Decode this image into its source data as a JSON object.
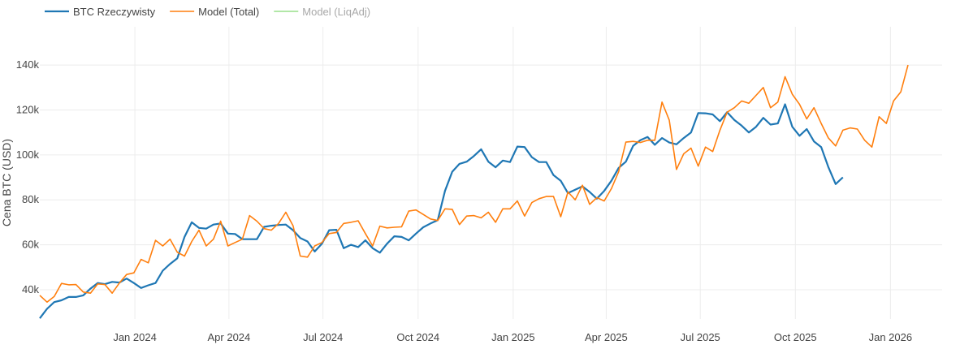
{
  "chart_data": {
    "type": "line",
    "ylabel": "Cena BTC (USD)",
    "xlim": [
      "2023-10-01",
      "2026-02-20"
    ],
    "ylim": [
      27000,
      157000
    ],
    "grid": true,
    "legend_position": "top-left",
    "x_ticks": [
      {
        "date": "2024-01-01",
        "label": "Jan 2024"
      },
      {
        "date": "2024-04-01",
        "label": "Apr 2024"
      },
      {
        "date": "2024-07-01",
        "label": "Jul 2024"
      },
      {
        "date": "2024-10-01",
        "label": "Oct 2024"
      },
      {
        "date": "2025-01-01",
        "label": "Jan 2025"
      },
      {
        "date": "2025-04-01",
        "label": "Apr 2025"
      },
      {
        "date": "2025-07-01",
        "label": "Jul 2025"
      },
      {
        "date": "2025-10-01",
        "label": "Oct 2025"
      },
      {
        "date": "2026-01-01",
        "label": "Jan 2026"
      }
    ],
    "y_ticks": [
      {
        "value": 40000,
        "label": "40k"
      },
      {
        "value": 60000,
        "label": "60k"
      },
      {
        "value": 80000,
        "label": "80k"
      },
      {
        "value": 100000,
        "label": "100k"
      },
      {
        "value": 120000,
        "label": "120k"
      },
      {
        "value": 140000,
        "label": "140k"
      }
    ],
    "series": [
      {
        "name": "BTC Rzeczywisty",
        "color": "#1f77b4",
        "legend_muted": false,
        "points": [
          [
            "2023-10-01",
            27300
          ],
          [
            "2023-10-08",
            31500
          ],
          [
            "2023-10-15",
            34500
          ],
          [
            "2023-10-22",
            35300
          ],
          [
            "2023-10-29",
            36800
          ],
          [
            "2023-11-05",
            36800
          ],
          [
            "2023-11-12",
            37500
          ],
          [
            "2023-11-19",
            40500
          ],
          [
            "2023-11-26",
            43000
          ],
          [
            "2023-12-03",
            42500
          ],
          [
            "2023-12-10",
            43500
          ],
          [
            "2023-12-17",
            43200
          ],
          [
            "2023-12-24",
            45000
          ],
          [
            "2023-12-31",
            43000
          ],
          [
            "2024-01-07",
            40800
          ],
          [
            "2024-01-14",
            42000
          ],
          [
            "2024-01-21",
            43000
          ],
          [
            "2024-01-28",
            48500
          ],
          [
            "2024-02-04",
            51500
          ],
          [
            "2024-02-11",
            54000
          ],
          [
            "2024-02-18",
            63500
          ],
          [
            "2024-02-25",
            70000
          ],
          [
            "2024-03-03",
            67500
          ],
          [
            "2024-03-10",
            67200
          ],
          [
            "2024-03-17",
            69000
          ],
          [
            "2024-03-24",
            69500
          ],
          [
            "2024-03-31",
            65000
          ],
          [
            "2024-04-07",
            64800
          ],
          [
            "2024-04-14",
            62500
          ],
          [
            "2024-04-21",
            62500
          ],
          [
            "2024-04-28",
            62500
          ],
          [
            "2024-05-05",
            68000
          ],
          [
            "2024-05-12",
            68500
          ],
          [
            "2024-05-19",
            68800
          ],
          [
            "2024-05-26",
            69000
          ],
          [
            "2024-06-02",
            66500
          ],
          [
            "2024-06-09",
            63000
          ],
          [
            "2024-06-16",
            61500
          ],
          [
            "2024-06-23",
            57000
          ],
          [
            "2024-06-30",
            60500
          ],
          [
            "2024-07-07",
            66500
          ],
          [
            "2024-07-14",
            66700
          ],
          [
            "2024-07-21",
            58500
          ],
          [
            "2024-07-28",
            60000
          ],
          [
            "2024-08-04",
            59000
          ],
          [
            "2024-08-11",
            62000
          ],
          [
            "2024-08-18",
            58500
          ],
          [
            "2024-08-25",
            56500
          ],
          [
            "2024-09-01",
            60500
          ],
          [
            "2024-09-08",
            63800
          ],
          [
            "2024-09-15",
            63500
          ],
          [
            "2024-09-22",
            62000
          ],
          [
            "2024-09-29",
            65000
          ],
          [
            "2024-10-06",
            67800
          ],
          [
            "2024-10-13",
            69500
          ],
          [
            "2024-10-20",
            71000
          ],
          [
            "2024-10-27",
            84000
          ],
          [
            "2024-11-03",
            92500
          ],
          [
            "2024-11-10",
            96000
          ],
          [
            "2024-11-17",
            97000
          ],
          [
            "2024-11-24",
            99500
          ],
          [
            "2024-12-01",
            102500
          ],
          [
            "2024-12-08",
            97000
          ],
          [
            "2024-12-15",
            94500
          ],
          [
            "2024-12-22",
            97500
          ],
          [
            "2024-12-29",
            96800
          ],
          [
            "2025-01-05",
            103700
          ],
          [
            "2025-01-12",
            103500
          ],
          [
            "2025-01-19",
            99000
          ],
          [
            "2025-01-26",
            96800
          ],
          [
            "2025-02-02",
            96800
          ],
          [
            "2025-02-09",
            91000
          ],
          [
            "2025-02-16",
            88500
          ],
          [
            "2025-02-23",
            83000
          ],
          [
            "2025-03-02",
            84500
          ],
          [
            "2025-03-09",
            86000
          ],
          [
            "2025-03-16",
            83500
          ],
          [
            "2025-03-23",
            80500
          ],
          [
            "2025-03-30",
            84000
          ],
          [
            "2025-04-06",
            88500
          ],
          [
            "2025-04-13",
            94200
          ],
          [
            "2025-04-20",
            97000
          ],
          [
            "2025-04-27",
            104000
          ],
          [
            "2025-05-04",
            106500
          ],
          [
            "2025-05-11",
            108000
          ],
          [
            "2025-05-18",
            104500
          ],
          [
            "2025-05-25",
            107500
          ],
          [
            "2025-06-01",
            105500
          ],
          [
            "2025-06-08",
            104700
          ],
          [
            "2025-06-15",
            107500
          ],
          [
            "2025-06-22",
            110000
          ],
          [
            "2025-06-29",
            118600
          ],
          [
            "2025-07-06",
            118500
          ],
          [
            "2025-07-13",
            118000
          ],
          [
            "2025-07-20",
            115000
          ],
          [
            "2025-07-27",
            119000
          ],
          [
            "2025-08-03",
            115500
          ],
          [
            "2025-08-10",
            113000
          ],
          [
            "2025-08-17",
            110000
          ],
          [
            "2025-08-24",
            112500
          ],
          [
            "2025-08-31",
            116500
          ],
          [
            "2025-09-07",
            113500
          ],
          [
            "2025-09-14",
            114000
          ],
          [
            "2025-09-21",
            122500
          ],
          [
            "2025-09-28",
            112500
          ],
          [
            "2025-10-05",
            108500
          ],
          [
            "2025-10-12",
            111500
          ],
          [
            "2025-10-19",
            106000
          ],
          [
            "2025-10-26",
            103500
          ],
          [
            "2025-11-02",
            94500
          ],
          [
            "2025-11-09",
            87000
          ],
          [
            "2025-11-16",
            90000
          ]
        ]
      },
      {
        "name": "Model (Total)",
        "color": "#ff7f0e",
        "legend_muted": false,
        "points": [
          [
            "2023-10-01",
            37500
          ],
          [
            "2023-10-08",
            34500
          ],
          [
            "2023-10-15",
            37000
          ],
          [
            "2023-10-22",
            42800
          ],
          [
            "2023-10-29",
            42200
          ],
          [
            "2023-11-05",
            42300
          ],
          [
            "2023-11-12",
            39000
          ],
          [
            "2023-11-19",
            38500
          ],
          [
            "2023-11-26",
            42600
          ],
          [
            "2023-12-03",
            42300
          ],
          [
            "2023-12-10",
            38500
          ],
          [
            "2023-12-17",
            43000
          ],
          [
            "2023-12-24",
            46800
          ],
          [
            "2023-12-31",
            47500
          ],
          [
            "2024-01-07",
            53500
          ],
          [
            "2024-01-14",
            52000
          ],
          [
            "2024-01-21",
            62000
          ],
          [
            "2024-01-28",
            59500
          ],
          [
            "2024-02-04",
            62500
          ],
          [
            "2024-02-11",
            56700
          ],
          [
            "2024-02-18",
            55000
          ],
          [
            "2024-02-25",
            61500
          ],
          [
            "2024-03-03",
            66500
          ],
          [
            "2024-03-10",
            59500
          ],
          [
            "2024-03-17",
            62500
          ],
          [
            "2024-03-24",
            70500
          ],
          [
            "2024-03-31",
            59500
          ],
          [
            "2024-04-07",
            61000
          ],
          [
            "2024-04-14",
            62500
          ],
          [
            "2024-04-21",
            73000
          ],
          [
            "2024-04-28",
            70500
          ],
          [
            "2024-05-05",
            67200
          ],
          [
            "2024-05-12",
            66500
          ],
          [
            "2024-05-19",
            69500
          ],
          [
            "2024-05-26",
            74500
          ],
          [
            "2024-06-02",
            68500
          ],
          [
            "2024-06-09",
            55000
          ],
          [
            "2024-06-16",
            54500
          ],
          [
            "2024-06-23",
            59500
          ],
          [
            "2024-06-30",
            61000
          ],
          [
            "2024-07-07",
            65000
          ],
          [
            "2024-07-14",
            65500
          ],
          [
            "2024-07-21",
            69500
          ],
          [
            "2024-07-28",
            70000
          ],
          [
            "2024-08-04",
            70700
          ],
          [
            "2024-08-11",
            65000
          ],
          [
            "2024-08-18",
            59500
          ],
          [
            "2024-08-25",
            68300
          ],
          [
            "2024-09-01",
            67500
          ],
          [
            "2024-09-08",
            67800
          ],
          [
            "2024-09-15",
            68000
          ],
          [
            "2024-09-22",
            75000
          ],
          [
            "2024-09-29",
            75500
          ],
          [
            "2024-10-06",
            73500
          ],
          [
            "2024-10-13",
            71500
          ],
          [
            "2024-10-20",
            70800
          ],
          [
            "2024-10-27",
            76000
          ],
          [
            "2024-11-03",
            75800
          ],
          [
            "2024-11-10",
            69000
          ],
          [
            "2024-11-17",
            72800
          ],
          [
            "2024-11-24",
            73000
          ],
          [
            "2024-12-01",
            72000
          ],
          [
            "2024-12-08",
            74500
          ],
          [
            "2024-12-15",
            70000
          ],
          [
            "2024-12-22",
            76000
          ],
          [
            "2024-12-29",
            76000
          ],
          [
            "2025-01-05",
            79500
          ],
          [
            "2025-01-12",
            72800
          ],
          [
            "2025-01-19",
            78800
          ],
          [
            "2025-01-26",
            80500
          ],
          [
            "2025-02-02",
            81500
          ],
          [
            "2025-02-09",
            81500
          ],
          [
            "2025-02-16",
            72500
          ],
          [
            "2025-02-23",
            83500
          ],
          [
            "2025-03-02",
            80000
          ],
          [
            "2025-03-09",
            86500
          ],
          [
            "2025-03-16",
            78000
          ],
          [
            "2025-03-23",
            81000
          ],
          [
            "2025-03-30",
            79500
          ],
          [
            "2025-04-06",
            85000
          ],
          [
            "2025-04-13",
            92500
          ],
          [
            "2025-04-20",
            105700
          ],
          [
            "2025-04-27",
            106000
          ],
          [
            "2025-05-04",
            105500
          ],
          [
            "2025-05-11",
            106500
          ],
          [
            "2025-05-18",
            106500
          ],
          [
            "2025-05-25",
            123500
          ],
          [
            "2025-06-01",
            115500
          ],
          [
            "2025-06-08",
            93500
          ],
          [
            "2025-06-15",
            100500
          ],
          [
            "2025-06-22",
            103000
          ],
          [
            "2025-06-29",
            95000
          ],
          [
            "2025-07-06",
            103500
          ],
          [
            "2025-07-13",
            101500
          ],
          [
            "2025-07-20",
            111000
          ],
          [
            "2025-07-27",
            119000
          ],
          [
            "2025-08-03",
            121000
          ],
          [
            "2025-08-10",
            124000
          ],
          [
            "2025-08-17",
            123000
          ],
          [
            "2025-08-24",
            126500
          ],
          [
            "2025-08-31",
            130000
          ],
          [
            "2025-09-07",
            121000
          ],
          [
            "2025-09-14",
            123500
          ],
          [
            "2025-09-21",
            134800
          ],
          [
            "2025-09-28",
            127000
          ],
          [
            "2025-10-05",
            122500
          ],
          [
            "2025-10-12",
            116000
          ],
          [
            "2025-10-19",
            121000
          ],
          [
            "2025-10-26",
            114000
          ],
          [
            "2025-11-02",
            107500
          ],
          [
            "2025-11-09",
            104000
          ],
          [
            "2025-11-16",
            111000
          ],
          [
            "2025-11-23",
            112000
          ],
          [
            "2025-11-30",
            111500
          ],
          [
            "2025-12-07",
            106500
          ],
          [
            "2025-12-14",
            103500
          ],
          [
            "2025-12-21",
            117000
          ],
          [
            "2025-12-28",
            114000
          ],
          [
            "2026-01-04",
            124000
          ],
          [
            "2026-01-11",
            128000
          ],
          [
            "2026-01-18",
            140000
          ]
        ]
      },
      {
        "name": "Model (LiqAdj)",
        "color": "#98df8a",
        "legend_muted": true,
        "points": []
      }
    ]
  }
}
